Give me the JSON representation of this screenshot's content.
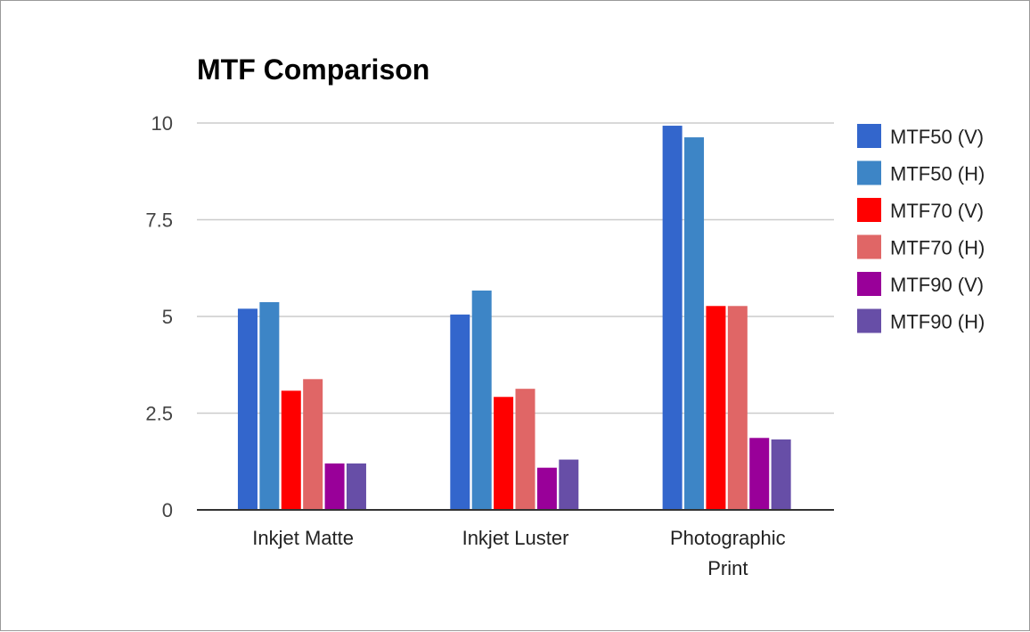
{
  "chart_data": {
    "type": "bar",
    "title": "MTF Comparison",
    "xlabel": "",
    "ylabel": "",
    "ylim": [
      0,
      10
    ],
    "yticks": [
      0,
      2.5,
      5,
      7.5,
      10
    ],
    "ytick_labels": [
      "0",
      "2.5",
      "5",
      "7.5",
      "10"
    ],
    "grid": true,
    "legend_position": "right",
    "categories": [
      [
        "Inkjet Matte"
      ],
      [
        "Inkjet Luster"
      ],
      [
        "Photographic",
        "Print"
      ]
    ],
    "series": [
      {
        "name": "MTF50 (V)",
        "color": "#3366cc",
        "values": [
          5.2,
          5.05,
          9.93
        ]
      },
      {
        "name": "MTF50 (H)",
        "color": "#3d85c6",
        "values": [
          5.37,
          5.67,
          9.63
        ]
      },
      {
        "name": "MTF70 (V)",
        "color": "#ff0000",
        "values": [
          3.08,
          2.92,
          5.27
        ]
      },
      {
        "name": "MTF70 (H)",
        "color": "#e06666",
        "values": [
          3.38,
          3.13,
          5.27
        ]
      },
      {
        "name": "MTF90 (V)",
        "color": "#990099",
        "values": [
          1.2,
          1.09,
          1.86
        ]
      },
      {
        "name": "MTF90 (H)",
        "color": "#674ea7",
        "values": [
          1.2,
          1.3,
          1.82
        ]
      }
    ]
  }
}
